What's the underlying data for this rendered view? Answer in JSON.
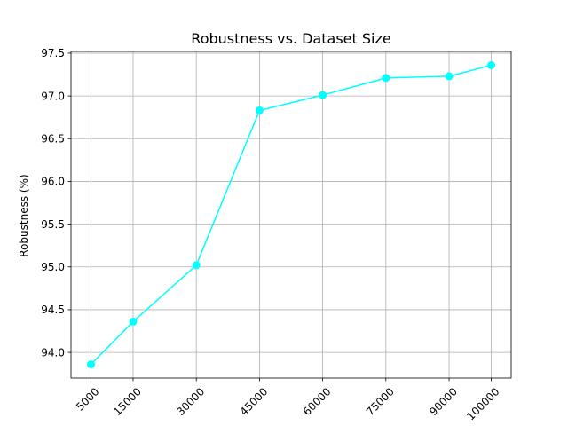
{
  "chart_data": {
    "type": "line",
    "title": "Robustness vs. Dataset Size",
    "xlabel": "",
    "ylabel": "Robustness (%)",
    "categories": [
      "5000",
      "15000",
      "30000",
      "45000",
      "60000",
      "75000",
      "90000",
      "100000"
    ],
    "series": [
      {
        "values": [
          93.86,
          94.36,
          95.02,
          96.83,
          97.01,
          97.21,
          97.23,
          97.36
        ],
        "color": "#00ffff",
        "marker": "circle"
      }
    ],
    "ylim": [
      93.7,
      97.52
    ],
    "yticks": [
      94.0,
      94.5,
      95.0,
      95.5,
      96.0,
      96.5,
      97.0,
      97.5
    ],
    "ytick_labels": [
      "94.0",
      "94.5",
      "95.0",
      "95.5",
      "96.0",
      "96.5",
      "97.0",
      "97.5"
    ],
    "xtick_rotation": 45,
    "grid": true
  }
}
